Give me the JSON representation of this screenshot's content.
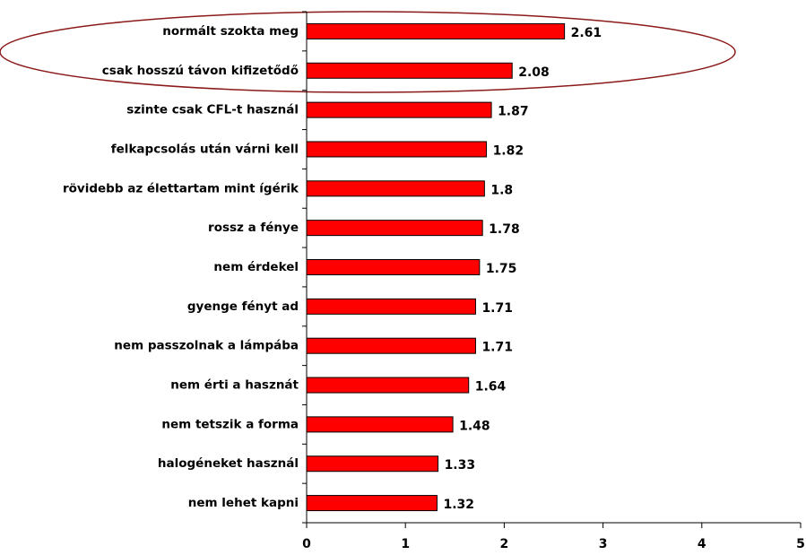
{
  "chart_data": {
    "type": "bar",
    "orientation": "horizontal",
    "categories": [
      "normált szokta meg",
      "csak hosszú távon kifizetődő",
      "szinte csak CFL-t használ",
      "felkapcsolás után várni kell",
      "rövidebb az élettartam mint ígérik",
      "rossz a fénye",
      "nem érdekel",
      "gyenge fényt ad",
      "nem passzolnak a lámpába",
      "nem érti a hasznát",
      "nem tetszik a forma",
      "halogéneket használ",
      "nem lehet kapni"
    ],
    "values": [
      2.61,
      2.08,
      1.87,
      1.82,
      1.8,
      1.78,
      1.75,
      1.71,
      1.71,
      1.64,
      1.48,
      1.33,
      1.32
    ],
    "color": "#ff0000",
    "xlim": [
      0,
      5
    ],
    "xticks": [
      0,
      1,
      2,
      3,
      4,
      5
    ]
  }
}
